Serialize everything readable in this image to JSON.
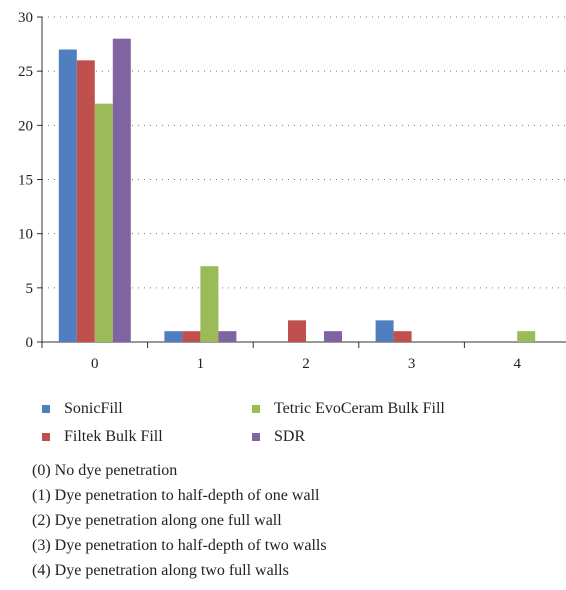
{
  "chart_data": {
    "type": "bar",
    "categories": [
      "0",
      "1",
      "2",
      "3",
      "4"
    ],
    "series": [
      {
        "name": "SonicFill",
        "color": "#4f7fbf",
        "values": [
          27,
          1,
          0,
          2,
          0
        ]
      },
      {
        "name": "Filtek Bulk Fill",
        "color": "#c0504d",
        "values": [
          26,
          1,
          2,
          1,
          0
        ]
      },
      {
        "name": "Tetric EvoCeram Bulk Fill",
        "color": "#9bbb59",
        "values": [
          22,
          7,
          0,
          0,
          1
        ]
      },
      {
        "name": "SDR",
        "color": "#8064a2",
        "values": [
          28,
          1,
          1,
          0,
          0
        ]
      }
    ],
    "ylim": [
      0,
      30
    ],
    "yticks": [
      0,
      5,
      10,
      15,
      20,
      25,
      30
    ],
    "grid": "dotted horizontal",
    "legend_position": "bottom"
  },
  "legend_items": [
    {
      "label": "SonicFill",
      "color": "#4f7fbf"
    },
    {
      "label": "Tetric EvoCeram Bulk Fill",
      "color": "#9bbb59"
    },
    {
      "label": "Filtek Bulk Fill",
      "color": "#c0504d"
    },
    {
      "label": "SDR",
      "color": "#8064a2"
    }
  ],
  "notes": [
    "(0) No dye penetration",
    "(1) Dye penetration to half-depth of one wall",
    "(2) Dye penetration along one full wall",
    "(3) Dye penetration to half-depth of two walls",
    "(4) Dye penetration along two full walls"
  ]
}
